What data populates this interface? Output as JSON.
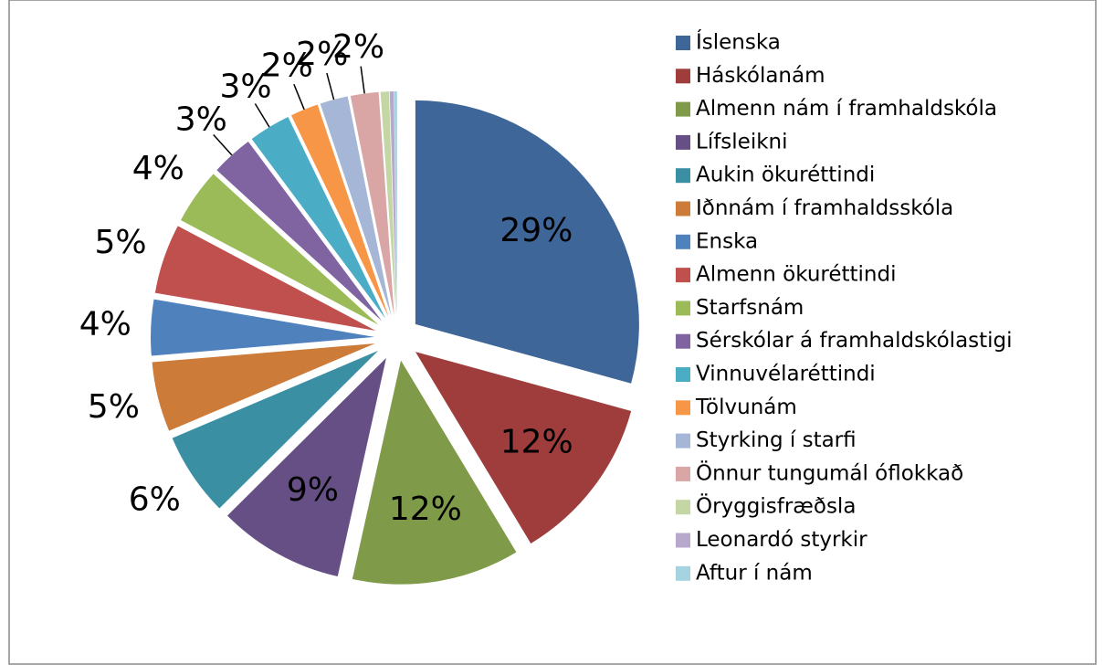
{
  "chart_data": {
    "type": "pie",
    "categories": [
      "Íslenska",
      "Háskólanám",
      "Almenn nám í framhaldskóla",
      "Lífsleikni",
      "Aukin ökuréttindi",
      "Iðnnám í framhaldsskóla",
      "Enska",
      "Almenn ökuréttindi",
      "Starfsnám",
      "Sérskólar á framhaldskólastigi",
      "Vinnuvélaréttindi",
      "Tölvunám",
      "Styrking í starfi",
      "Önnur tungumál óflokkað",
      "Öryggisfræðsla",
      "Leonardó styrkir",
      "Aftur í nám"
    ],
    "values": [
      29,
      12,
      12,
      9,
      6,
      5,
      4,
      5,
      4,
      3,
      3,
      2,
      2,
      2,
      0.6,
      0.3,
      0.2
    ],
    "value_labels": [
      "29%",
      "12%",
      "12%",
      "9%",
      "6%",
      "5%",
      "4%",
      "5%",
      "4%",
      "3%",
      "3%",
      "2%",
      "2%",
      "2%",
      null,
      null,
      null
    ],
    "colors": [
      "#3E6699",
      "#9E3D3B",
      "#7F9A48",
      "#664F85",
      "#3A8FA3",
      "#CD7B38",
      "#4F81BD",
      "#C0504D",
      "#9BBB59",
      "#8064A2",
      "#4BACC6",
      "#F79646",
      "#A5B6D6",
      "#D9A6A5",
      "#C4D6A4",
      "#B7A9CC",
      "#A5D3E0"
    ],
    "legend": "right"
  }
}
